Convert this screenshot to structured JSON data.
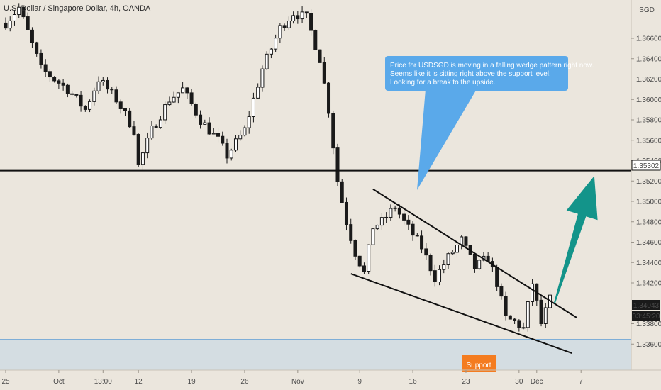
{
  "chart_data": {
    "type": "candlestick",
    "title": "U.S. Dollar / Singapore Dollar, 4h, OANDA",
    "currency": "SGD",
    "y_ticks": [
      "1.36600",
      "1.36400",
      "1.36200",
      "1.36000",
      "1.35800",
      "1.35600",
      "1.35400",
      "1.35200",
      "1.35000",
      "1.34800",
      "1.34600",
      "1.34400",
      "1.34200",
      "1.33800",
      "1.33600"
    ],
    "y_tick_values": [
      1.366,
      1.364,
      1.362,
      1.36,
      1.358,
      1.356,
      1.354,
      1.352,
      1.35,
      1.348,
      1.346,
      1.344,
      1.342,
      1.338,
      1.336
    ],
    "ylim": [
      1.334,
      1.3692
    ],
    "x_ticks": [
      {
        "label": "25",
        "bar": 0
      },
      {
        "label": "Oct",
        "bar": 12
      },
      {
        "label": "13:00",
        "bar": 22
      },
      {
        "label": "12",
        "bar": 30
      },
      {
        "label": "19",
        "bar": 42
      },
      {
        "label": "26",
        "bar": 54
      },
      {
        "label": "Nov",
        "bar": 66
      },
      {
        "label": "9",
        "bar": 80
      },
      {
        "label": "16",
        "bar": 92
      },
      {
        "label": "23",
        "bar": 104
      },
      {
        "label": "30",
        "bar": 116
      },
      {
        "label": "Dec",
        "bar": 120
      },
      {
        "label": "7",
        "bar": 130
      }
    ],
    "n_bars": 150,
    "close_path": [
      [
        0,
        1.3675
      ],
      [
        3,
        1.369
      ],
      [
        8,
        1.363
      ],
      [
        14,
        1.361
      ],
      [
        18,
        1.359
      ],
      [
        21,
        1.362
      ],
      [
        25,
        1.36
      ],
      [
        29,
        1.357
      ],
      [
        30,
        1.3535
      ],
      [
        33,
        1.357
      ],
      [
        37,
        1.36
      ],
      [
        40,
        1.361
      ],
      [
        44,
        1.358
      ],
      [
        48,
        1.356
      ],
      [
        50,
        1.3545
      ],
      [
        54,
        1.357
      ],
      [
        58,
        1.363
      ],
      [
        62,
        1.367
      ],
      [
        65,
        1.3685
      ],
      [
        68,
        1.368
      ],
      [
        71,
        1.364
      ],
      [
        73,
        1.359
      ],
      [
        75,
        1.352
      ],
      [
        77,
        1.348
      ],
      [
        79,
        1.345
      ],
      [
        81,
        1.343
      ],
      [
        83,
        1.3475
      ],
      [
        85,
        1.348
      ],
      [
        88,
        1.3495
      ],
      [
        90,
        1.348
      ],
      [
        94,
        1.3455
      ],
      [
        97,
        1.3425
      ],
      [
        100,
        1.3445
      ],
      [
        103,
        1.3462
      ],
      [
        106,
        1.3435
      ],
      [
        109,
        1.3445
      ],
      [
        111,
        1.342
      ],
      [
        113,
        1.3385
      ],
      [
        115,
        1.3382
      ],
      [
        117,
        1.3375
      ],
      [
        119,
        1.342
      ],
      [
        121,
        1.338
      ],
      [
        123,
        1.3404
      ]
    ],
    "horizontal_level": {
      "label": "1.35302",
      "value": 1.35302
    },
    "last_price": {
      "label": "1.34043",
      "value": 1.34043
    },
    "countdown": "03:45:20",
    "support_zone": {
      "label": "Support",
      "top": 1.33645
    },
    "wedge_upper": [
      [
        83,
        1.3512
      ],
      [
        129,
        1.3386
      ]
    ],
    "wedge_lower": [
      [
        78,
        1.3429
      ],
      [
        128,
        1.3351
      ]
    ],
    "arrow": {
      "from": [
        124,
        1.34
      ],
      "to": [
        133,
        1.3525
      ]
    },
    "annotation": "Price for USDSGD is moving in a falling wedge pattern right now.\nSeems like it is sitting right above the support level.\nLooking for a break to the upside.",
    "colors": {
      "background": "#ebe6dd",
      "candle": "#1a1a1a",
      "support_zone": "#d4dde2",
      "callout": "#5aa9ea",
      "arrow": "#13948a",
      "support_tag": "#f47c20"
    }
  }
}
